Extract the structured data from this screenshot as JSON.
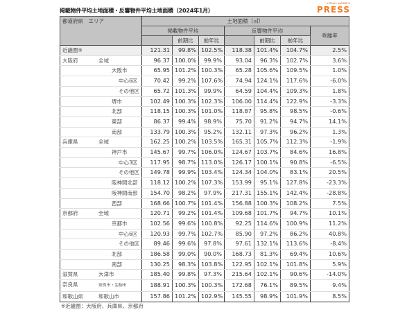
{
  "title": "掲載物件平均土地面積・反響物件平均土地面積（2024年1月）",
  "logo": {
    "top": "LIFULL HOME'S",
    "main": "PRESS",
    "color": "#ee7d28"
  },
  "header": {
    "corner": "都道府県　エリア",
    "group": "土地面積（㎡）",
    "listed": "掲載物件平均",
    "response": "反響物件平均",
    "gap": "乖離率",
    "qoq": "前期比",
    "yoy": "前年比"
  },
  "rows": [
    {
      "pref": "近畿圏※",
      "area": "",
      "v": [
        "121.31",
        "99.8%",
        "102.5%",
        "118.38",
        "101.4%",
        "104.7%",
        "2.5%"
      ]
    },
    {
      "pref": "大阪府",
      "area": "全域",
      "v": [
        "96.37",
        "100.0%",
        "99.9%",
        "93.04",
        "96.3%",
        "102.7%",
        "3.6%"
      ]
    },
    {
      "pref": "",
      "area": "大阪市",
      "v": [
        "65.95",
        "101.2%",
        "100.3%",
        "65.28",
        "105.6%",
        "109.5%",
        "1.0%"
      ]
    },
    {
      "pref": "",
      "area": "中心6区",
      "v": [
        "70.42",
        "99.2%",
        "107.6%",
        "74.94",
        "124.1%",
        "117.6%",
        "-6.0%"
      ]
    },
    {
      "pref": "",
      "area": "その他区",
      "v": [
        "65.72",
        "101.3%",
        "99.9%",
        "64.59",
        "104.4%",
        "109.3%",
        "1.8%"
      ]
    },
    {
      "pref": "",
      "area": "堺市",
      "v": [
        "102.49",
        "100.3%",
        "102.3%",
        "106.00",
        "114.4%",
        "122.9%",
        "-3.3%"
      ]
    },
    {
      "pref": "",
      "area": "北部",
      "v": [
        "118.15",
        "100.3%",
        "101.0%",
        "118.87",
        "95.8%",
        "98.5%",
        "-0.6%"
      ]
    },
    {
      "pref": "",
      "area": "東部",
      "v": [
        "86.37",
        "99.4%",
        "98.9%",
        "75.70",
        "91.2%",
        "94.7%",
        "14.1%"
      ]
    },
    {
      "pref": "",
      "area": "南部",
      "v": [
        "133.79",
        "100.3%",
        "95.2%",
        "132.11",
        "97.3%",
        "96.2%",
        "1.3%"
      ]
    },
    {
      "pref": "兵庫県",
      "area": "全域",
      "v": [
        "162.25",
        "100.2%",
        "103.5%",
        "165.31",
        "105.7%",
        "112.3%",
        "-1.9%"
      ]
    },
    {
      "pref": "",
      "area": "神戸市",
      "v": [
        "145.67",
        "99.7%",
        "106.0%",
        "124.67",
        "103.7%",
        "84.6%",
        "16.8%"
      ]
    },
    {
      "pref": "",
      "area": "中心3区",
      "v": [
        "117.95",
        "98.7%",
        "113.0%",
        "126.17",
        "100.1%",
        "90.8%",
        "-6.5%"
      ]
    },
    {
      "pref": "",
      "area": "その他区",
      "v": [
        "149.78",
        "99.9%",
        "103.4%",
        "124.34",
        "104.0%",
        "83.1%",
        "20.5%"
      ]
    },
    {
      "pref": "",
      "area": "阪神間北部",
      "v": [
        "118.12",
        "100.2%",
        "107.3%",
        "153.99",
        "95.1%",
        "127.8%",
        "-23.3%"
      ]
    },
    {
      "pref": "",
      "area": "阪神間南部",
      "v": [
        "154.70",
        "98.2%",
        "97.9%",
        "217.31",
        "155.1%",
        "142.4%",
        "-28.8%"
      ]
    },
    {
      "pref": "",
      "area": "西部",
      "v": [
        "168.66",
        "100.7%",
        "101.4%",
        "156.88",
        "100.3%",
        "108.2%",
        "7.5%"
      ]
    },
    {
      "pref": "京都府",
      "area": "全域",
      "v": [
        "120.71",
        "99.2%",
        "101.4%",
        "109.68",
        "101.7%",
        "94.7%",
        "10.1%"
      ]
    },
    {
      "pref": "",
      "area": "京都市",
      "v": [
        "102.56",
        "99.6%",
        "100.8%",
        "92.25",
        "114.6%",
        "100.9%",
        "11.2%"
      ]
    },
    {
      "pref": "",
      "area": "中心6区",
      "v": [
        "120.93",
        "99.7%",
        "102.7%",
        "85.90",
        "97.2%",
        "86.2%",
        "40.8%"
      ]
    },
    {
      "pref": "",
      "area": "その他区",
      "v": [
        "89.46",
        "99.6%",
        "97.8%",
        "97.61",
        "132.1%",
        "113.6%",
        "-8.4%"
      ]
    },
    {
      "pref": "",
      "area": "北部",
      "v": [
        "186.58",
        "99.0%",
        "90.0%",
        "168.73",
        "81.3%",
        "69.4%",
        "10.6%"
      ]
    },
    {
      "pref": "",
      "area": "南部",
      "v": [
        "130.25",
        "98.3%",
        "103.8%",
        "122.95",
        "102.1%",
        "101.8%",
        "5.9%"
      ]
    },
    {
      "pref": "滋賀県",
      "area": "大津市",
      "v": [
        "185.40",
        "99.8%",
        "97.3%",
        "215.64",
        "102.1%",
        "90.6%",
        "-14.0%"
      ]
    },
    {
      "pref": "奈良県",
      "area": "奈良市・生駒市",
      "v": [
        "188.91",
        "100.3%",
        "100.3%",
        "172.68",
        "76.1%",
        "89.5%",
        "9.4%"
      ]
    },
    {
      "pref": "和歌山県",
      "area": "和歌山市",
      "v": [
        "157.86",
        "101.2%",
        "102.9%",
        "145.55",
        "98.9%",
        "101.9%",
        "8.5%"
      ]
    }
  ],
  "footnote": "※近畿圏：大阪府、兵庫県、京都府"
}
